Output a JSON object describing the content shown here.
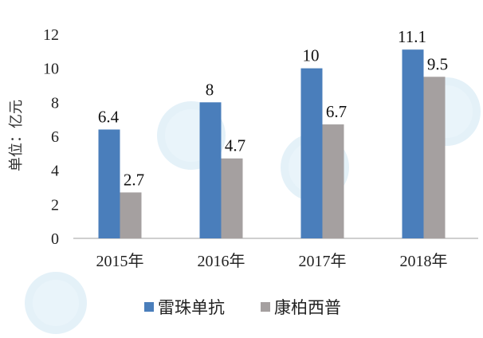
{
  "chart_data": {
    "type": "bar",
    "categories": [
      "2015年",
      "2016年",
      "2017年",
      "2018年"
    ],
    "series": [
      {
        "name": "雷珠单抗",
        "values": [
          6.4,
          8,
          10,
          11.1
        ],
        "color": "#4a7ebb"
      },
      {
        "name": "康柏西普",
        "values": [
          2.7,
          4.7,
          6.7,
          9.5
        ],
        "color": "#a5a0a0"
      }
    ],
    "data_labels": [
      [
        "6.4",
        "8",
        "10",
        "11.1"
      ],
      [
        "2.7",
        "4.7",
        "6.7",
        "9.5"
      ]
    ],
    "ylabel": "单位：亿元",
    "ylim": [
      0,
      12
    ],
    "yticks": [
      "0",
      "2",
      "4",
      "6",
      "8",
      "10",
      "12"
    ],
    "grid": false,
    "legend_position": "bottom"
  }
}
